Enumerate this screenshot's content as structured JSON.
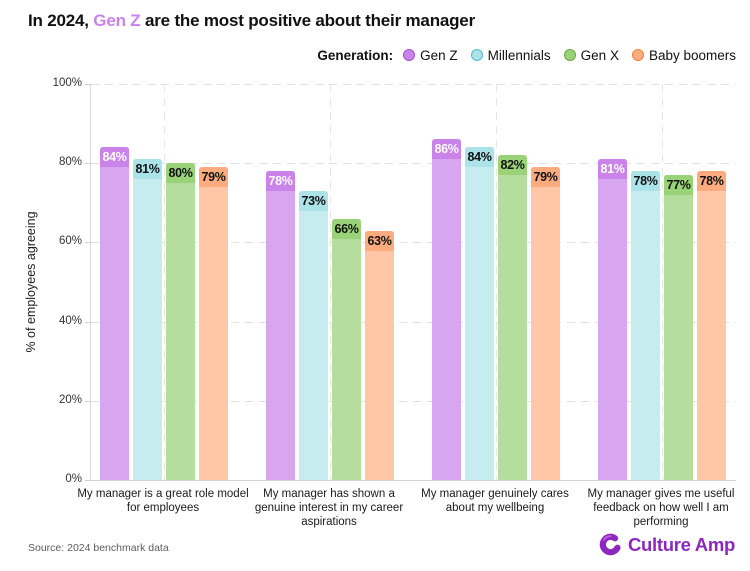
{
  "title": {
    "prefix": "In 2024, ",
    "highlight": "Gen Z",
    "suffix": " are the most positive about their manager",
    "highlight_color": "#c983e9"
  },
  "chart_data": {
    "type": "bar",
    "title": "In 2024, Gen Z are the most positive about their manager",
    "xlabel": "",
    "ylabel": "% of employees agreeing",
    "ylim": [
      0,
      100
    ],
    "yticks": [
      0,
      20,
      40,
      60,
      80,
      100
    ],
    "ytick_labels": [
      "0%",
      "20%",
      "40%",
      "60%",
      "80%",
      "100%"
    ],
    "grid": {
      "horizontal": "dashed",
      "vertical_category_centerlines": "dashed"
    },
    "legend_position": "top-right",
    "legend_title": "Generation:",
    "categories": [
      "My manager is a great role model for employees",
      "My manager has shown a genuine interest in my career aspirations",
      "My manager genuinely cares about my wellbeing",
      "My manager gives me useful feedback on how well I am performing"
    ],
    "series": [
      {
        "name": "Gen Z",
        "values": [
          84,
          78,
          86,
          81
        ],
        "bar_color": "#d8a5f1",
        "label_bg": "#c983e9",
        "label_color": "#ffffff",
        "legend_fill": "#c983e9",
        "legend_stroke": "#a751d6"
      },
      {
        "name": "Millennials",
        "values": [
          81,
          73,
          84,
          78
        ],
        "bar_color": "#c7ecf0",
        "label_bg": "#abe3e9",
        "label_color": "#111111",
        "legend_fill": "#abe3e9",
        "legend_stroke": "#58b7c4"
      },
      {
        "name": "Gen X",
        "values": [
          80,
          66,
          82,
          77
        ],
        "bar_color": "#b5de9e",
        "label_bg": "#9ad377",
        "label_color": "#111111",
        "legend_fill": "#9ad377",
        "legend_stroke": "#67a83f"
      },
      {
        "name": "Baby boomers",
        "values": [
          79,
          63,
          79,
          78
        ],
        "bar_color": "#ffc7a6",
        "label_bg": "#fdab7f",
        "label_color": "#111111",
        "legend_fill": "#fdab7f",
        "legend_stroke": "#e8843f"
      }
    ],
    "value_label_format": "{value}%"
  },
  "footer": {
    "source": "Source: 2024 benchmark data",
    "brand_name": "Culture Amp",
    "brand_color": "#8c28bd"
  }
}
